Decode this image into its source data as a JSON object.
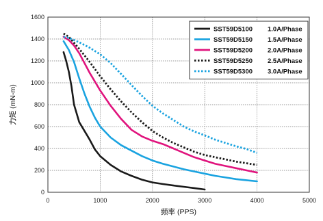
{
  "chart_data": {
    "type": "line",
    "title": "",
    "xlabel": "频率 (PPS)",
    "ylabel": "力矩 (mN-m)",
    "xlim": [
      0,
      5000
    ],
    "ylim": [
      0,
      1600
    ],
    "xticks": [
      "0",
      "1000",
      "2000",
      "3000",
      "4000",
      "5000"
    ],
    "yticks": [
      "0",
      "200",
      "400",
      "600",
      "800",
      "1000",
      "1200",
      "1400",
      "1600"
    ],
    "grid": true,
    "legend_position": "top-right",
    "series": [
      {
        "name": "SST59D5100",
        "current": "1.0A/Phase",
        "color": "#1a1a1a",
        "dash": "solid",
        "x": [
          300,
          350,
          400,
          450,
          500,
          550,
          600,
          700,
          800,
          900,
          1000,
          1200,
          1400,
          1600,
          1800,
          2000,
          2200,
          2400,
          2600,
          2800,
          3000
        ],
        "y": [
          1280,
          1200,
          1100,
          970,
          800,
          720,
          640,
          560,
          480,
          390,
          330,
          250,
          190,
          150,
          115,
          90,
          75,
          62,
          50,
          38,
          25
        ]
      },
      {
        "name": "SST59D5150",
        "current": "1.5A/Phase",
        "color": "#1aa3e0",
        "dash": "solid",
        "x": [
          300,
          400,
          500,
          600,
          700,
          800,
          900,
          1000,
          1200,
          1400,
          1600,
          1800,
          2000,
          2200,
          2400,
          2600,
          2800,
          3000,
          3200,
          3400,
          3600,
          3800,
          4000
        ],
        "y": [
          1380,
          1300,
          1190,
          1040,
          900,
          780,
          680,
          600,
          500,
          430,
          380,
          330,
          290,
          260,
          235,
          210,
          190,
          170,
          150,
          135,
          120,
          110,
          100
        ]
      },
      {
        "name": "SST59D5200",
        "current": "2.0A/Phase",
        "color": "#e0137d",
        "dash": "solid",
        "x": [
          300,
          400,
          500,
          600,
          700,
          800,
          900,
          1000,
          1200,
          1400,
          1600,
          1800,
          2000,
          2200,
          2400,
          2600,
          2800,
          3000,
          3200,
          3400,
          3600,
          3800,
          4000
        ],
        "y": [
          1420,
          1390,
          1340,
          1270,
          1180,
          1090,
          1010,
          930,
          790,
          670,
          570,
          510,
          470,
          440,
          400,
          360,
          320,
          290,
          260,
          240,
          220,
          200,
          180
        ]
      },
      {
        "name": "SST59D5250",
        "current": "2.5A/Phase",
        "color": "#1a1a1a",
        "dash": "dotted",
        "x": [
          300,
          400,
          600,
          800,
          1000,
          1200,
          1400,
          1600,
          1800,
          2000,
          2200,
          2400,
          2600,
          2800,
          3000,
          3200,
          3400,
          3600,
          3800,
          4000
        ],
        "y": [
          1450,
          1420,
          1310,
          1190,
          1060,
          940,
          830,
          730,
          640,
          560,
          500,
          450,
          410,
          370,
          340,
          320,
          300,
          280,
          265,
          250
        ]
      },
      {
        "name": "SST59D5300",
        "current": "3.0A/Phase",
        "color": "#1aa3e0",
        "dash": "dotted",
        "x": [
          300,
          400,
          600,
          800,
          1000,
          1200,
          1400,
          1600,
          1800,
          2000,
          2200,
          2400,
          2600,
          2800,
          3000,
          3200,
          3400,
          3600,
          3800,
          4000
        ],
        "y": [
          1420,
          1410,
          1370,
          1320,
          1260,
          1180,
          1080,
          980,
          880,
          790,
          720,
          660,
          600,
          555,
          520,
          480,
          450,
          420,
          395,
          360
        ]
      }
    ]
  }
}
